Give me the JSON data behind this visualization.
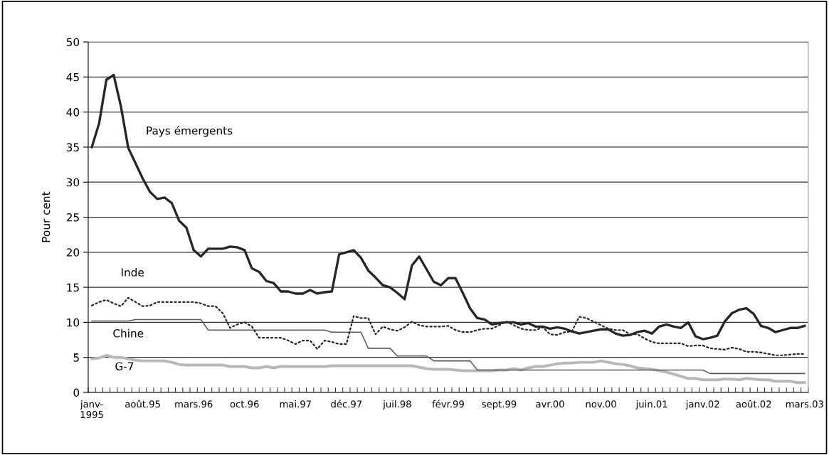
{
  "chart_data": {
    "type": "line",
    "ylabel": "Pour cent",
    "categories": [
      "janv-\n1995",
      null,
      null,
      null,
      null,
      null,
      null,
      "août.95",
      null,
      null,
      null,
      null,
      null,
      null,
      "mars.96",
      null,
      null,
      null,
      null,
      null,
      null,
      "oct.96",
      null,
      null,
      null,
      null,
      null,
      null,
      "mai.97",
      null,
      null,
      null,
      null,
      null,
      null,
      "déc.97",
      null,
      null,
      null,
      null,
      null,
      null,
      "juil.98",
      null,
      null,
      null,
      null,
      null,
      null,
      "févr.99",
      null,
      null,
      null,
      null,
      null,
      null,
      "sept.99",
      null,
      null,
      null,
      null,
      null,
      null,
      "avr.00",
      null,
      null,
      null,
      null,
      null,
      null,
      "nov.00",
      null,
      null,
      null,
      null,
      null,
      null,
      "juin.01",
      null,
      null,
      null,
      null,
      null,
      null,
      "janv.02",
      null,
      null,
      null,
      null,
      null,
      null,
      "août.02",
      null,
      null,
      null,
      null,
      null,
      null,
      "mars.03"
    ],
    "ylim": [
      0,
      50
    ],
    "yticks": [
      0,
      5,
      10,
      15,
      20,
      25,
      30,
      35,
      40,
      45,
      50
    ],
    "grid": "y",
    "legend": false,
    "marker": "none",
    "series": [
      {
        "name": "Pays émergents",
        "color": "#262626",
        "line_style": "solid",
        "values": [
          35.0,
          38.4,
          44.6,
          45.3,
          40.8,
          34.9,
          32.7,
          30.5,
          28.6,
          27.6,
          27.8,
          27.0,
          24.5,
          23.5,
          20.3,
          19.4,
          20.5,
          20.5,
          20.5,
          20.8,
          20.7,
          20.3,
          17.7,
          17.2,
          15.9,
          15.6,
          14.4,
          14.4,
          14.1,
          14.1,
          14.6,
          14.1,
          14.3,
          14.4,
          19.7,
          20.0,
          20.3,
          19.2,
          17.4,
          16.4,
          15.3,
          15.0,
          14.2,
          13.3,
          18.1,
          19.4,
          17.6,
          15.8,
          15.3,
          16.3,
          16.3,
          14.2,
          12.0,
          10.6,
          10.4,
          9.7,
          9.9,
          10.0,
          10.0,
          9.7,
          9.9,
          9.4,
          9.4,
          9.1,
          9.3,
          9.1,
          8.7,
          8.4,
          8.6,
          8.8,
          9.0,
          9.0,
          8.4,
          8.1,
          8.2,
          8.6,
          8.8,
          8.4,
          9.4,
          9.7,
          9.4,
          9.2,
          10.0,
          8.0,
          7.6,
          7.8,
          8.1,
          10.1,
          11.3,
          11.8,
          12.0,
          11.2,
          9.5,
          9.2,
          8.6,
          8.9,
          9.2,
          9.2,
          9.5
        ]
      },
      {
        "name": "Inde",
        "color": "#262626",
        "line_style": "dotted",
        "values": [
          12.4,
          12.9,
          13.2,
          12.7,
          12.3,
          13.5,
          12.9,
          12.3,
          12.4,
          12.9,
          12.9,
          12.9,
          12.9,
          12.9,
          12.9,
          12.7,
          12.3,
          12.3,
          11.3,
          9.2,
          9.7,
          10.0,
          9.4,
          7.8,
          7.8,
          7.8,
          7.8,
          7.4,
          6.9,
          7.4,
          7.4,
          6.2,
          7.4,
          7.2,
          6.9,
          6.9,
          10.9,
          10.6,
          10.6,
          8.3,
          9.4,
          9.0,
          8.8,
          9.3,
          10.1,
          9.6,
          9.4,
          9.4,
          9.4,
          9.5,
          8.9,
          8.6,
          8.6,
          8.9,
          9.1,
          9.1,
          9.6,
          10.1,
          9.6,
          9.1,
          8.9,
          8.9,
          9.3,
          8.3,
          8.2,
          8.6,
          8.7,
          10.8,
          10.6,
          10.1,
          9.6,
          9.1,
          8.9,
          8.9,
          8.3,
          8.3,
          7.7,
          7.2,
          7.0,
          7.0,
          7.0,
          7.0,
          6.6,
          6.7,
          6.7,
          6.3,
          6.2,
          6.1,
          6.4,
          6.2,
          5.8,
          5.8,
          5.7,
          5.5,
          5.3,
          5.3,
          5.4,
          5.5,
          5.5
        ]
      },
      {
        "name": "Chine",
        "color": "#595959",
        "line_style": "solid",
        "values": [
          10.2,
          10.2,
          10.2,
          10.2,
          10.2,
          10.2,
          10.4,
          10.4,
          10.4,
          10.4,
          10.4,
          10.4,
          10.4,
          10.4,
          10.4,
          10.4,
          8.9,
          8.9,
          8.9,
          8.9,
          8.9,
          8.9,
          8.9,
          8.9,
          8.9,
          8.9,
          8.9,
          8.9,
          8.9,
          8.9,
          8.9,
          8.9,
          8.9,
          8.6,
          8.6,
          8.6,
          8.6,
          8.6,
          6.3,
          6.3,
          6.3,
          6.3,
          5.2,
          5.2,
          5.2,
          5.2,
          5.2,
          4.5,
          4.5,
          4.5,
          4.5,
          4.5,
          4.5,
          3.2,
          3.2,
          3.2,
          3.2,
          3.2,
          3.2,
          3.2,
          3.2,
          3.2,
          3.2,
          3.2,
          3.2,
          3.2,
          3.2,
          3.2,
          3.2,
          3.2,
          3.2,
          3.2,
          3.2,
          3.2,
          3.2,
          3.2,
          3.2,
          3.2,
          3.2,
          3.2,
          3.2,
          3.2,
          3.2,
          3.2,
          3.2,
          2.7,
          2.7,
          2.7,
          2.7,
          2.7,
          2.7,
          2.7,
          2.7,
          2.7,
          2.7,
          2.7,
          2.7,
          2.7,
          2.7
        ]
      },
      {
        "name": "G-7",
        "color": "#b8b8b8",
        "line_style": "solid",
        "values": [
          4.8,
          4.9,
          5.3,
          5.0,
          5.0,
          4.8,
          4.6,
          4.5,
          4.5,
          4.5,
          4.5,
          4.3,
          4.0,
          3.9,
          3.9,
          3.9,
          3.9,
          3.9,
          3.9,
          3.7,
          3.7,
          3.7,
          3.5,
          3.5,
          3.7,
          3.5,
          3.7,
          3.7,
          3.7,
          3.7,
          3.7,
          3.7,
          3.7,
          3.8,
          3.8,
          3.8,
          3.8,
          3.8,
          3.8,
          3.8,
          3.8,
          3.8,
          3.8,
          3.8,
          3.8,
          3.6,
          3.4,
          3.3,
          3.3,
          3.3,
          3.2,
          3.1,
          3.1,
          3.1,
          3.1,
          3.1,
          3.2,
          3.2,
          3.4,
          3.2,
          3.5,
          3.7,
          3.7,
          3.9,
          4.1,
          4.2,
          4.2,
          4.3,
          4.3,
          4.3,
          4.5,
          4.3,
          4.1,
          4.0,
          3.8,
          3.5,
          3.4,
          3.3,
          3.1,
          2.9,
          2.6,
          2.3,
          2.0,
          2.0,
          1.8,
          1.8,
          1.8,
          1.9,
          1.9,
          1.8,
          2.0,
          1.9,
          1.8,
          1.8,
          1.6,
          1.6,
          1.6,
          1.4,
          1.4
        ]
      }
    ]
  }
}
